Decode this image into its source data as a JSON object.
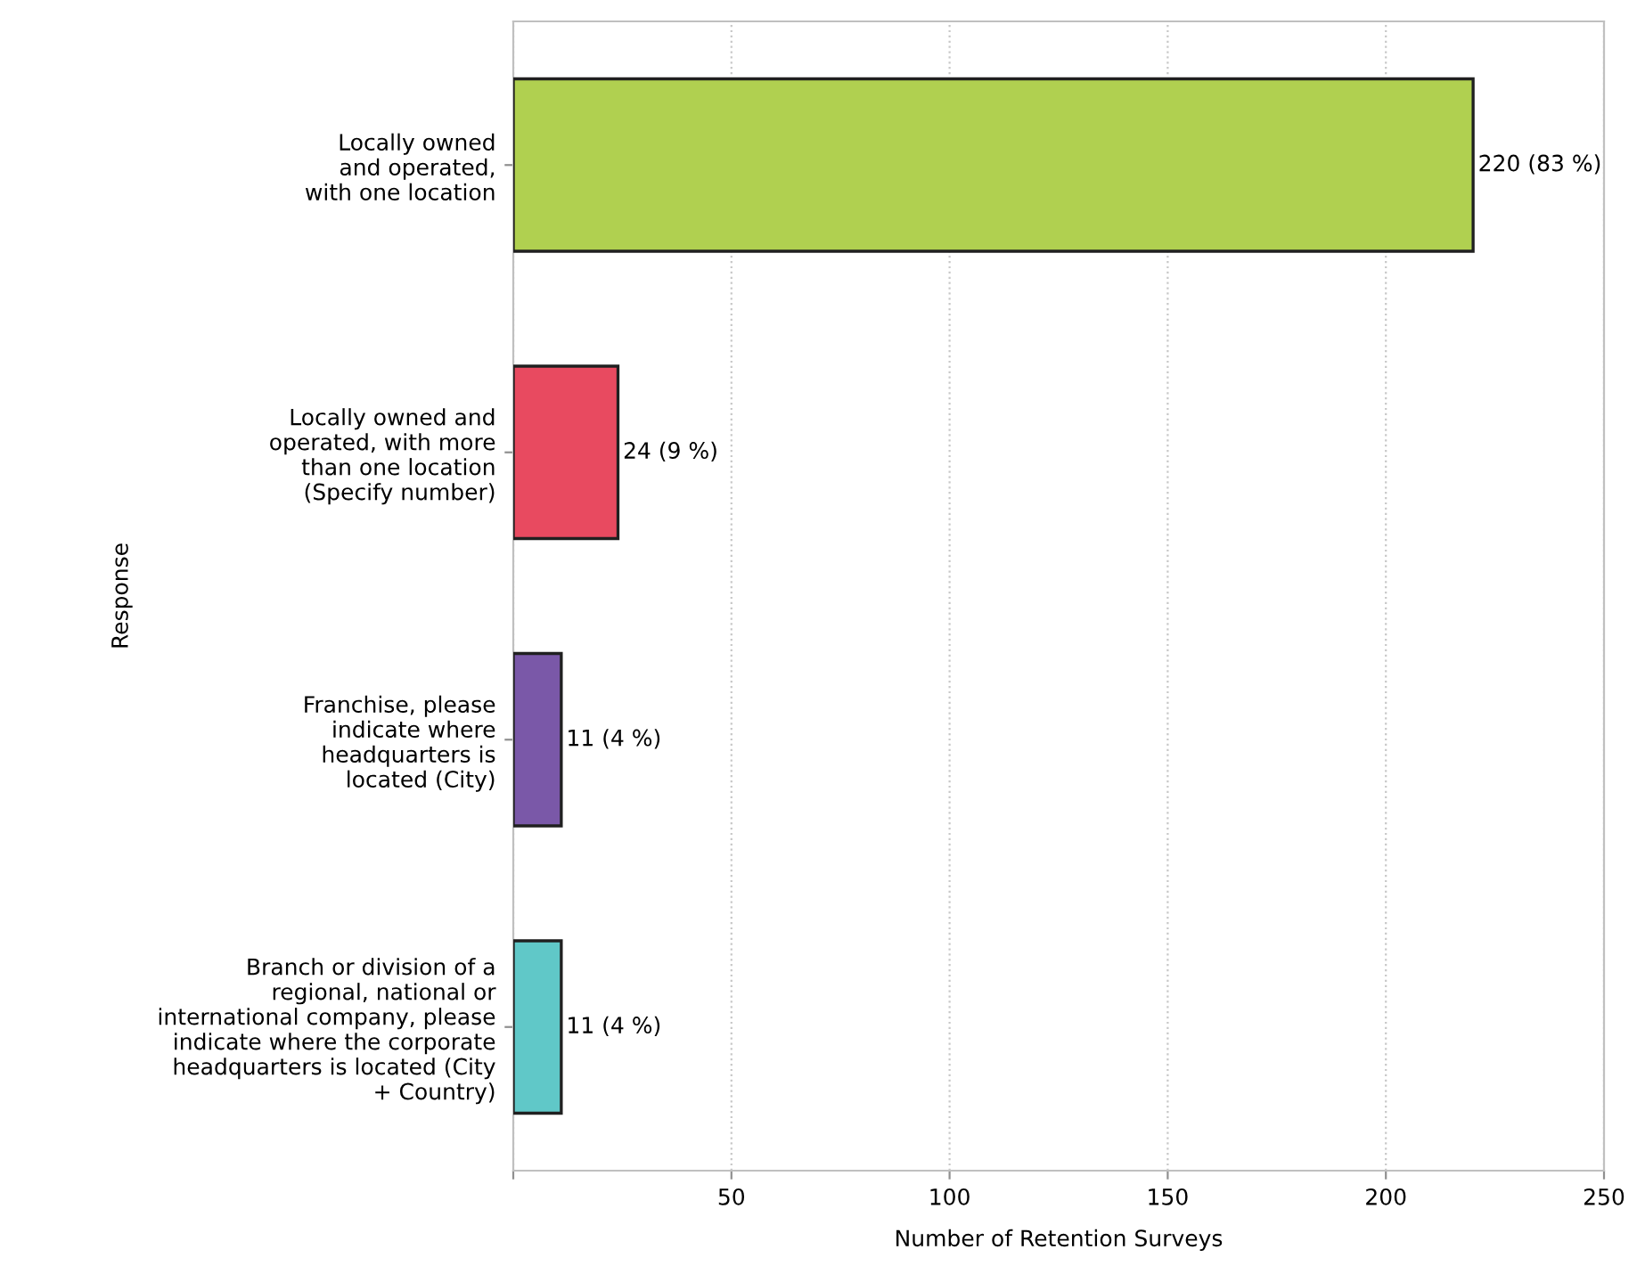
{
  "chart_data": {
    "type": "bar",
    "orientation": "horizontal",
    "xlabel": "Number of Retention Surveys",
    "ylabel": "Response",
    "categories": [
      "Locally owned\nand operated,\nwith one location",
      "Locally owned and\noperated, with more\nthan one location\n(Specify number)",
      "Franchise, please\nindicate where\nheadquarters is\nlocated (City)",
      "Branch or division of a\nregional, national or\ninternational company, please\nindicate where the corporate\nheadquarters is located (City\n+ Country)"
    ],
    "values": [
      220,
      24,
      11,
      11
    ],
    "colors": [
      "#b0d050",
      "#e84a60",
      "#7a58a8",
      "#60c8c8"
    ],
    "value_labels": [
      "220 (83 %)",
      "24 (9 %)",
      "11 (4 %)",
      "11 (4 %)"
    ],
    "xlim": [
      0,
      250
    ],
    "xticks": [
      {
        "value": 0,
        "label": null
      },
      50,
      100,
      150,
      200,
      250
    ],
    "grid": "x"
  }
}
